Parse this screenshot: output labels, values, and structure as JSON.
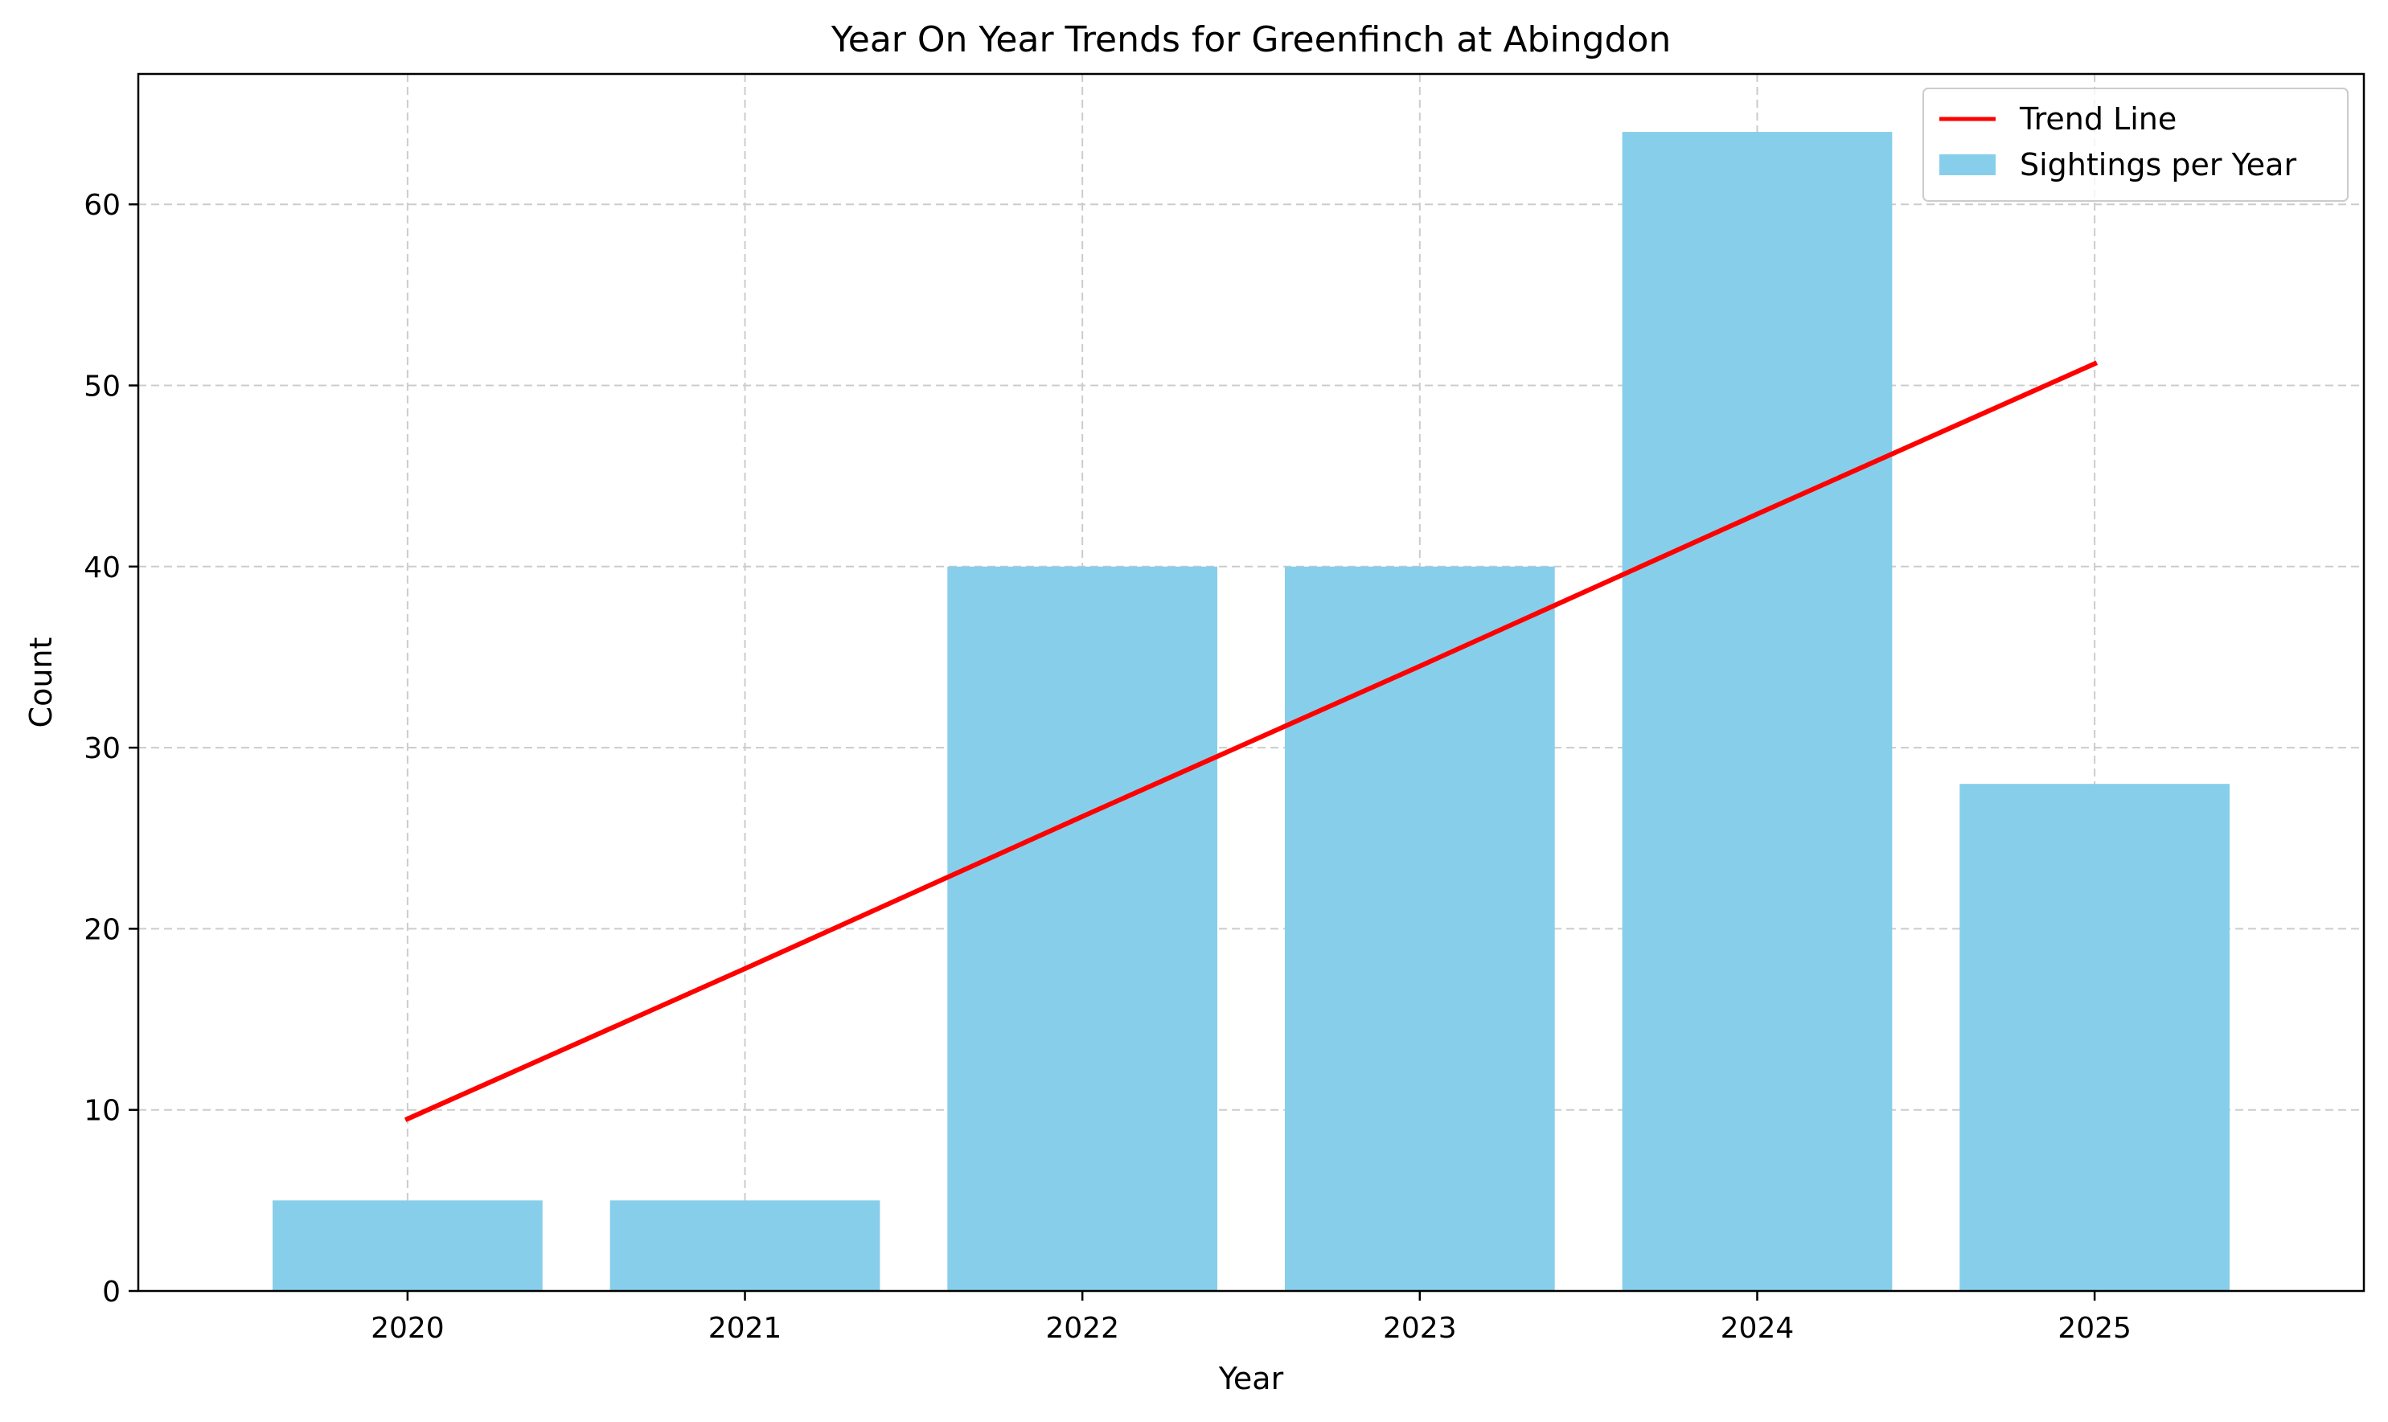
{
  "chart_data": {
    "type": "bar",
    "title": "Year On Year Trends for Greenfinch at Abingdon",
    "xlabel": "Year",
    "ylabel": "Count",
    "categories": [
      "2020",
      "2021",
      "2022",
      "2023",
      "2024",
      "2025"
    ],
    "ylim": [
      0,
      67.2
    ],
    "yticks": [
      0,
      10,
      20,
      30,
      40,
      50,
      60
    ],
    "grid": true,
    "legend_position": "top-right",
    "series": [
      {
        "name": "Sightings per Year",
        "kind": "bar",
        "color": "#87CEEB",
        "values": [
          5,
          5,
          40,
          40,
          64,
          28
        ]
      },
      {
        "name": "Trend Line",
        "kind": "line",
        "color": "#FF0000",
        "values": [
          9.5,
          17.8,
          26.2,
          34.5,
          42.9,
          51.2
        ]
      }
    ]
  }
}
